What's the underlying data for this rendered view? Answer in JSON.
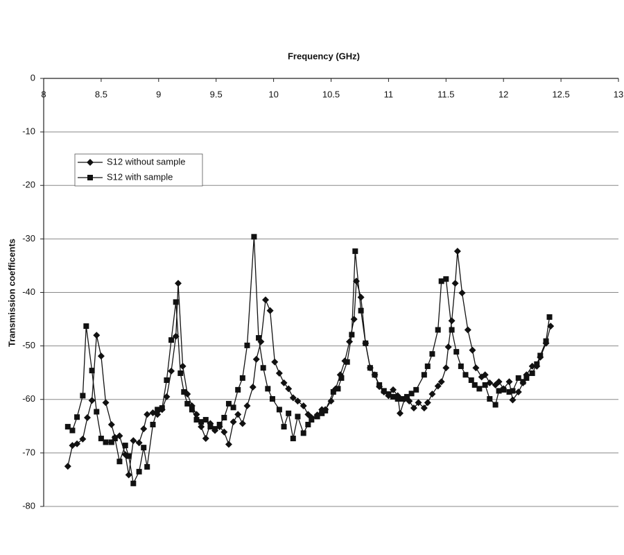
{
  "chart_data": {
    "type": "line",
    "x_label": "Frequency (GHz)",
    "y_label": "Transmission coefficents",
    "xlim": [
      8,
      13
    ],
    "xticks": [
      8,
      8.5,
      9,
      9.5,
      10,
      10.5,
      11,
      11.5,
      12,
      12.5,
      13
    ],
    "ylim": [
      -80,
      0
    ],
    "yticks": [
      0,
      -10,
      -20,
      -30,
      -40,
      -50,
      -60,
      -70,
      -80
    ],
    "grid": true,
    "legend": "upper left",
    "series": [
      {
        "name": "S12 without sample",
        "color": "#111111",
        "marker": "diamond",
        "x": [
          8.21,
          8.25,
          8.29,
          8.34,
          8.38,
          8.42,
          8.46,
          8.5,
          8.54,
          8.59,
          8.62,
          8.66,
          8.71,
          8.74,
          8.78,
          8.83,
          8.87,
          8.9,
          8.95,
          8.99,
          9.03,
          9.07,
          9.11,
          9.15,
          9.17,
          9.21,
          9.25,
          9.29,
          9.33,
          9.37,
          9.41,
          9.45,
          9.49,
          9.53,
          9.57,
          9.61,
          9.65,
          9.69,
          9.73,
          9.77,
          9.82,
          9.85,
          9.89,
          9.93,
          9.97,
          10.01,
          10.05,
          10.09,
          10.13,
          10.17,
          10.21,
          10.26,
          10.3,
          10.33,
          10.38,
          10.42,
          10.45,
          10.5,
          10.54,
          10.58,
          10.62,
          10.66,
          10.7,
          10.72,
          10.76,
          10.8,
          10.84,
          10.88,
          10.92,
          10.96,
          11.0,
          11.04,
          11.08,
          11.1,
          11.14,
          11.18,
          11.22,
          11.26,
          11.31,
          11.34,
          11.38,
          11.43,
          11.46,
          11.5,
          11.52,
          11.55,
          11.58,
          11.6,
          11.64,
          11.69,
          11.73,
          11.76,
          11.81,
          11.84,
          11.88,
          11.93,
          11.96,
          12.0,
          12.05,
          12.08,
          12.13,
          12.17,
          12.2,
          12.25,
          12.29,
          12.32,
          12.37,
          12.41
        ],
        "values": [
          -72.5,
          -68.6,
          -68.3,
          -67.4,
          -63.4,
          -60.2,
          -48.0,
          -51.9,
          -60.6,
          -64.7,
          -67.1,
          -66.8,
          -70.3,
          -74.1,
          -67.7,
          -68.1,
          -65.5,
          -62.8,
          -62.5,
          -62.8,
          -61.9,
          -59.5,
          -54.7,
          -48.2,
          -38.3,
          -53.8,
          -59.0,
          -61.2,
          -62.8,
          -65.1,
          -67.3,
          -64.5,
          -65.8,
          -65.1,
          -66.1,
          -68.4,
          -64.2,
          -62.8,
          -64.5,
          -61.2,
          -57.7,
          -52.5,
          -49.2,
          -41.4,
          -43.4,
          -53.0,
          -55.1,
          -56.9,
          -58.0,
          -59.7,
          -60.3,
          -61.2,
          -62.8,
          -63.4,
          -62.9,
          -61.9,
          -61.9,
          -60.3,
          -58.0,
          -55.4,
          -52.8,
          -49.2,
          -45.0,
          -37.9,
          -40.9,
          -49.5,
          -54.1,
          -55.4,
          -57.6,
          -58.6,
          -59.3,
          -58.2,
          -59.3,
          -62.6,
          -59.9,
          -60.3,
          -61.6,
          -60.6,
          -61.6,
          -60.6,
          -59.0,
          -57.5,
          -56.7,
          -54.1,
          -50.2,
          -45.3,
          -38.3,
          -32.3,
          -40.1,
          -47.0,
          -50.8,
          -54.1,
          -55.8,
          -55.4,
          -56.9,
          -57.3,
          -56.7,
          -58.0,
          -56.7,
          -60.1,
          -58.6,
          -56.9,
          -55.4,
          -53.8,
          -53.8,
          -52.1,
          -49.5,
          -46.3
        ]
      },
      {
        "name": "S12 with sample",
        "color": "#111111",
        "marker": "square",
        "x": [
          8.21,
          8.25,
          8.29,
          8.34,
          8.37,
          8.42,
          8.46,
          8.5,
          8.54,
          8.59,
          8.62,
          8.66,
          8.71,
          8.74,
          8.78,
          8.83,
          8.87,
          8.9,
          8.95,
          8.99,
          9.03,
          9.07,
          9.11,
          9.15,
          9.19,
          9.22,
          9.25,
          9.29,
          9.33,
          9.37,
          9.41,
          9.45,
          9.49,
          9.53,
          9.57,
          9.61,
          9.65,
          9.69,
          9.73,
          9.77,
          9.83,
          9.87,
          9.91,
          9.95,
          9.99,
          10.05,
          10.09,
          10.13,
          10.17,
          10.21,
          10.26,
          10.3,
          10.33,
          10.38,
          10.42,
          10.45,
          10.52,
          10.56,
          10.59,
          10.64,
          10.68,
          10.71,
          10.76,
          10.8,
          10.84,
          10.88,
          10.92,
          10.96,
          11.0,
          11.04,
          11.08,
          11.12,
          11.16,
          11.2,
          11.24,
          11.31,
          11.34,
          11.38,
          11.43,
          11.46,
          11.5,
          11.55,
          11.59,
          11.63,
          11.67,
          11.72,
          11.75,
          11.79,
          11.84,
          11.88,
          11.93,
          11.96,
          12.0,
          12.05,
          12.08,
          12.13,
          12.17,
          12.2,
          12.25,
          12.29,
          12.32,
          12.37,
          12.4
        ],
        "values": [
          -65.1,
          -65.8,
          -63.3,
          -59.3,
          -46.3,
          -54.6,
          -62.3,
          -67.3,
          -68.0,
          -68.0,
          -67.3,
          -71.6,
          -68.6,
          -70.6,
          -75.7,
          -73.5,
          -69.0,
          -72.6,
          -64.7,
          -61.9,
          -61.6,
          -56.4,
          -48.9,
          -41.8,
          -55.1,
          -58.6,
          -60.8,
          -61.9,
          -63.8,
          -64.2,
          -63.8,
          -65.1,
          -65.5,
          -64.7,
          -63.4,
          -60.8,
          -61.5,
          -58.2,
          -56.0,
          -49.9,
          -29.6,
          -48.5,
          -54.1,
          -58.0,
          -59.9,
          -61.9,
          -65.1,
          -62.6,
          -67.3,
          -63.2,
          -66.3,
          -64.7,
          -63.8,
          -63.2,
          -62.6,
          -62.1,
          -58.6,
          -58.0,
          -56.0,
          -53.0,
          -47.9,
          -32.3,
          -43.4,
          -49.5,
          -54.1,
          -55.4,
          -57.3,
          -58.4,
          -59.0,
          -59.5,
          -59.9,
          -59.9,
          -59.5,
          -58.9,
          -58.2,
          -55.4,
          -53.8,
          -51.5,
          -47.0,
          -37.9,
          -37.5,
          -47.0,
          -51.1,
          -53.8,
          -55.4,
          -56.4,
          -57.3,
          -58.0,
          -57.3,
          -59.9,
          -61.0,
          -58.4,
          -58.2,
          -58.6,
          -58.4,
          -56.0,
          -56.7,
          -56.0,
          -55.1,
          -53.4,
          -51.8,
          -49.1,
          -44.6
        ]
      }
    ]
  }
}
